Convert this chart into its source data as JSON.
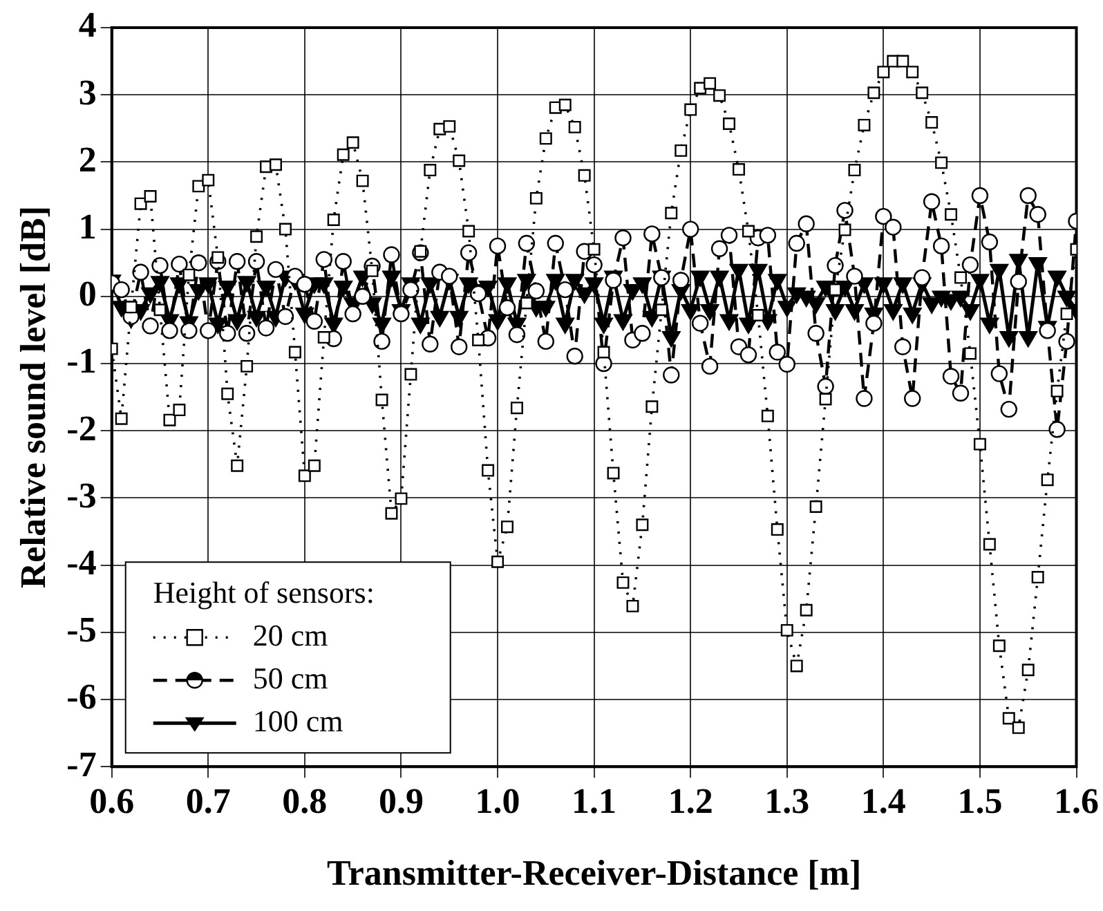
{
  "chart_data": {
    "type": "line",
    "xlabel": "Transmitter-Receiver-Distance [m]",
    "ylabel": "Relative sound level [dB]",
    "legend_title": "Height of sensors:",
    "legend": "bottom left",
    "grid": true,
    "x": [
      0.6,
      0.61,
      0.62,
      0.63,
      0.64,
      0.65,
      0.66,
      0.67,
      0.68,
      0.69,
      0.7,
      0.71,
      0.72,
      0.73,
      0.74,
      0.75,
      0.76,
      0.77,
      0.78,
      0.79,
      0.8,
      0.81,
      0.82,
      0.83,
      0.84,
      0.85,
      0.86,
      0.87,
      0.88,
      0.89,
      0.9,
      0.91,
      0.92,
      0.93,
      0.94,
      0.95,
      0.96,
      0.97,
      0.98,
      0.99,
      1.0,
      1.01,
      1.02,
      1.03,
      1.04,
      1.05,
      1.06,
      1.07,
      1.08,
      1.09,
      1.1,
      1.11,
      1.12,
      1.13,
      1.14,
      1.15,
      1.16,
      1.17,
      1.18,
      1.19,
      1.2,
      1.21,
      1.22,
      1.23,
      1.24,
      1.25,
      1.26,
      1.27,
      1.28,
      1.29,
      1.3,
      1.31,
      1.32,
      1.33,
      1.34,
      1.35,
      1.36,
      1.37,
      1.38,
      1.39,
      1.4,
      1.41,
      1.42,
      1.43,
      1.44,
      1.45,
      1.46,
      1.47,
      1.48,
      1.49,
      1.5,
      1.51,
      1.52,
      1.53,
      1.54,
      1.55,
      1.56,
      1.57,
      1.58,
      1.59,
      1.6
    ],
    "series": [
      {
        "name": "20 cm",
        "color": "#000000",
        "marker": "square",
        "line_style": "dotted",
        "values": [
          -0.78,
          -1.82,
          -0.16,
          1.38,
          1.49,
          -0.2,
          -1.84,
          -1.69,
          0.32,
          1.64,
          1.73,
          0.58,
          -1.45,
          -2.52,
          -1.04,
          0.89,
          1.93,
          1.96,
          1.0,
          -0.83,
          -2.67,
          -2.52,
          -0.61,
          1.14,
          2.11,
          2.29,
          1.72,
          0.38,
          -1.54,
          -3.23,
          -3.01,
          -1.16,
          0.67,
          1.88,
          2.49,
          2.53,
          2.02,
          0.97,
          -0.65,
          -2.59,
          -3.95,
          -3.43,
          -1.66,
          -0.1,
          1.46,
          2.35,
          2.81,
          2.85,
          2.52,
          1.8,
          0.7,
          -0.83,
          -2.63,
          -4.26,
          -4.61,
          -3.4,
          -1.64,
          -0.2,
          1.24,
          2.17,
          2.78,
          3.1,
          3.17,
          2.99,
          2.57,
          1.89,
          0.97,
          -0.28,
          -1.78,
          -3.47,
          -4.97,
          -5.5,
          -4.67,
          -3.13,
          -1.53,
          0.1,
          0.99,
          1.88,
          2.55,
          3.03,
          3.34,
          3.5,
          3.5,
          3.34,
          3.03,
          2.59,
          1.99,
          1.22,
          0.28,
          -0.85,
          -2.2,
          -3.69,
          -5.2,
          -6.28,
          -6.42,
          -5.56,
          -4.18,
          -2.73,
          -1.41,
          -0.26,
          0.7
        ]
      },
      {
        "name": "50 cm",
        "color": "#000000",
        "marker": "circle",
        "line_style": "dashed",
        "values": [
          0.2,
          0.1,
          -0.3,
          0.36,
          -0.44,
          0.46,
          -0.51,
          0.48,
          -0.51,
          0.5,
          -0.51,
          0.52,
          -0.55,
          0.52,
          -0.55,
          0.52,
          -0.47,
          0.4,
          -0.3,
          0.3,
          0.18,
          -0.37,
          0.55,
          -0.63,
          0.52,
          -0.26,
          0.0,
          0.45,
          -0.67,
          0.62,
          -0.26,
          0.1,
          0.65,
          -0.71,
          0.36,
          0.3,
          -0.75,
          0.65,
          0.04,
          -0.62,
          0.75,
          -0.17,
          -0.57,
          0.79,
          0.08,
          -0.67,
          0.79,
          0.1,
          -0.89,
          0.67,
          0.47,
          -1.0,
          0.24,
          0.87,
          -0.65,
          -0.55,
          0.93,
          0.28,
          -1.17,
          0.24,
          1.0,
          -0.4,
          -1.04,
          0.71,
          0.91,
          -0.75,
          -0.87,
          0.87,
          0.91,
          -0.83,
          -1.01,
          0.79,
          1.08,
          -0.55,
          -1.34,
          0.46,
          1.28,
          0.3,
          -1.52,
          -0.4,
          1.19,
          1.03,
          -0.75,
          -1.52,
          0.28,
          1.41,
          0.75,
          -1.19,
          -1.44,
          0.47,
          1.5,
          0.81,
          -1.15,
          -1.68,
          0.22,
          1.5,
          1.22,
          -0.51,
          -1.98,
          -0.67,
          1.12
        ]
      },
      {
        "name": "100 cm",
        "color": "#000000",
        "marker": "triangle",
        "line_style": "solid",
        "values": [
          0.24,
          -0.15,
          -0.32,
          -0.2,
          0.05,
          0.22,
          -0.35,
          0.2,
          -0.38,
          0.1,
          0.2,
          -0.4,
          0.15,
          -0.35,
          0.22,
          -0.3,
          0.15,
          -0.3,
          0.3,
          0.25,
          -0.25,
          0.2,
          0.2,
          -0.4,
          0.15,
          -0.1,
          0.3,
          -0.1,
          -0.4,
          0.3,
          -0.2,
          0.2,
          -0.4,
          0.2,
          -0.3,
          0.25,
          -0.3,
          0.2,
          0.1,
          0.15,
          -0.35,
          0.2,
          -0.4,
          0.25,
          -0.15,
          -0.15,
          0.25,
          -0.4,
          0.25,
          0.05,
          0.2,
          -0.4,
          0.3,
          -0.35,
          0.1,
          0.2,
          -0.3,
          0.3,
          -0.6,
          0.1,
          -0.2,
          0.3,
          -0.2,
          0.3,
          -0.35,
          0.4,
          -0.4,
          0.4,
          -0.35,
          0.25,
          -0.15,
          0.05,
          0.0,
          -0.1,
          0.15,
          -0.2,
          0.15,
          -0.2,
          0.2,
          -0.25,
          0.2,
          -0.2,
          0.2,
          -0.25,
          0.2,
          -0.1,
          0.0,
          -0.05,
          0.0,
          -0.2,
          0.25,
          -0.4,
          0.4,
          -0.6,
          0.55,
          -0.6,
          0.5,
          -0.45,
          0.3,
          0.0,
          -0.2
        ]
      }
    ],
    "xlim": [
      0.6,
      1.6
    ],
    "xticks": [
      {
        "value": 0.6,
        "label": "0.6"
      },
      {
        "value": 0.7,
        "label": "0.7"
      },
      {
        "value": 0.8,
        "label": "0.8"
      },
      {
        "value": 0.9,
        "label": "0.9"
      },
      {
        "value": 1.0,
        "label": "1.0"
      },
      {
        "value": 1.1,
        "label": "1.1"
      },
      {
        "value": 1.2,
        "label": "1.2"
      },
      {
        "value": 1.3,
        "label": "1.3"
      },
      {
        "value": 1.4,
        "label": "1.4"
      },
      {
        "value": 1.5,
        "label": "1.5"
      },
      {
        "value": 1.6,
        "label": "1.6"
      }
    ],
    "ylim": [
      -7,
      4
    ],
    "yticks": [
      -7,
      -6,
      -5,
      -4,
      -3,
      -2,
      -1,
      0,
      1,
      2,
      3,
      4
    ]
  }
}
